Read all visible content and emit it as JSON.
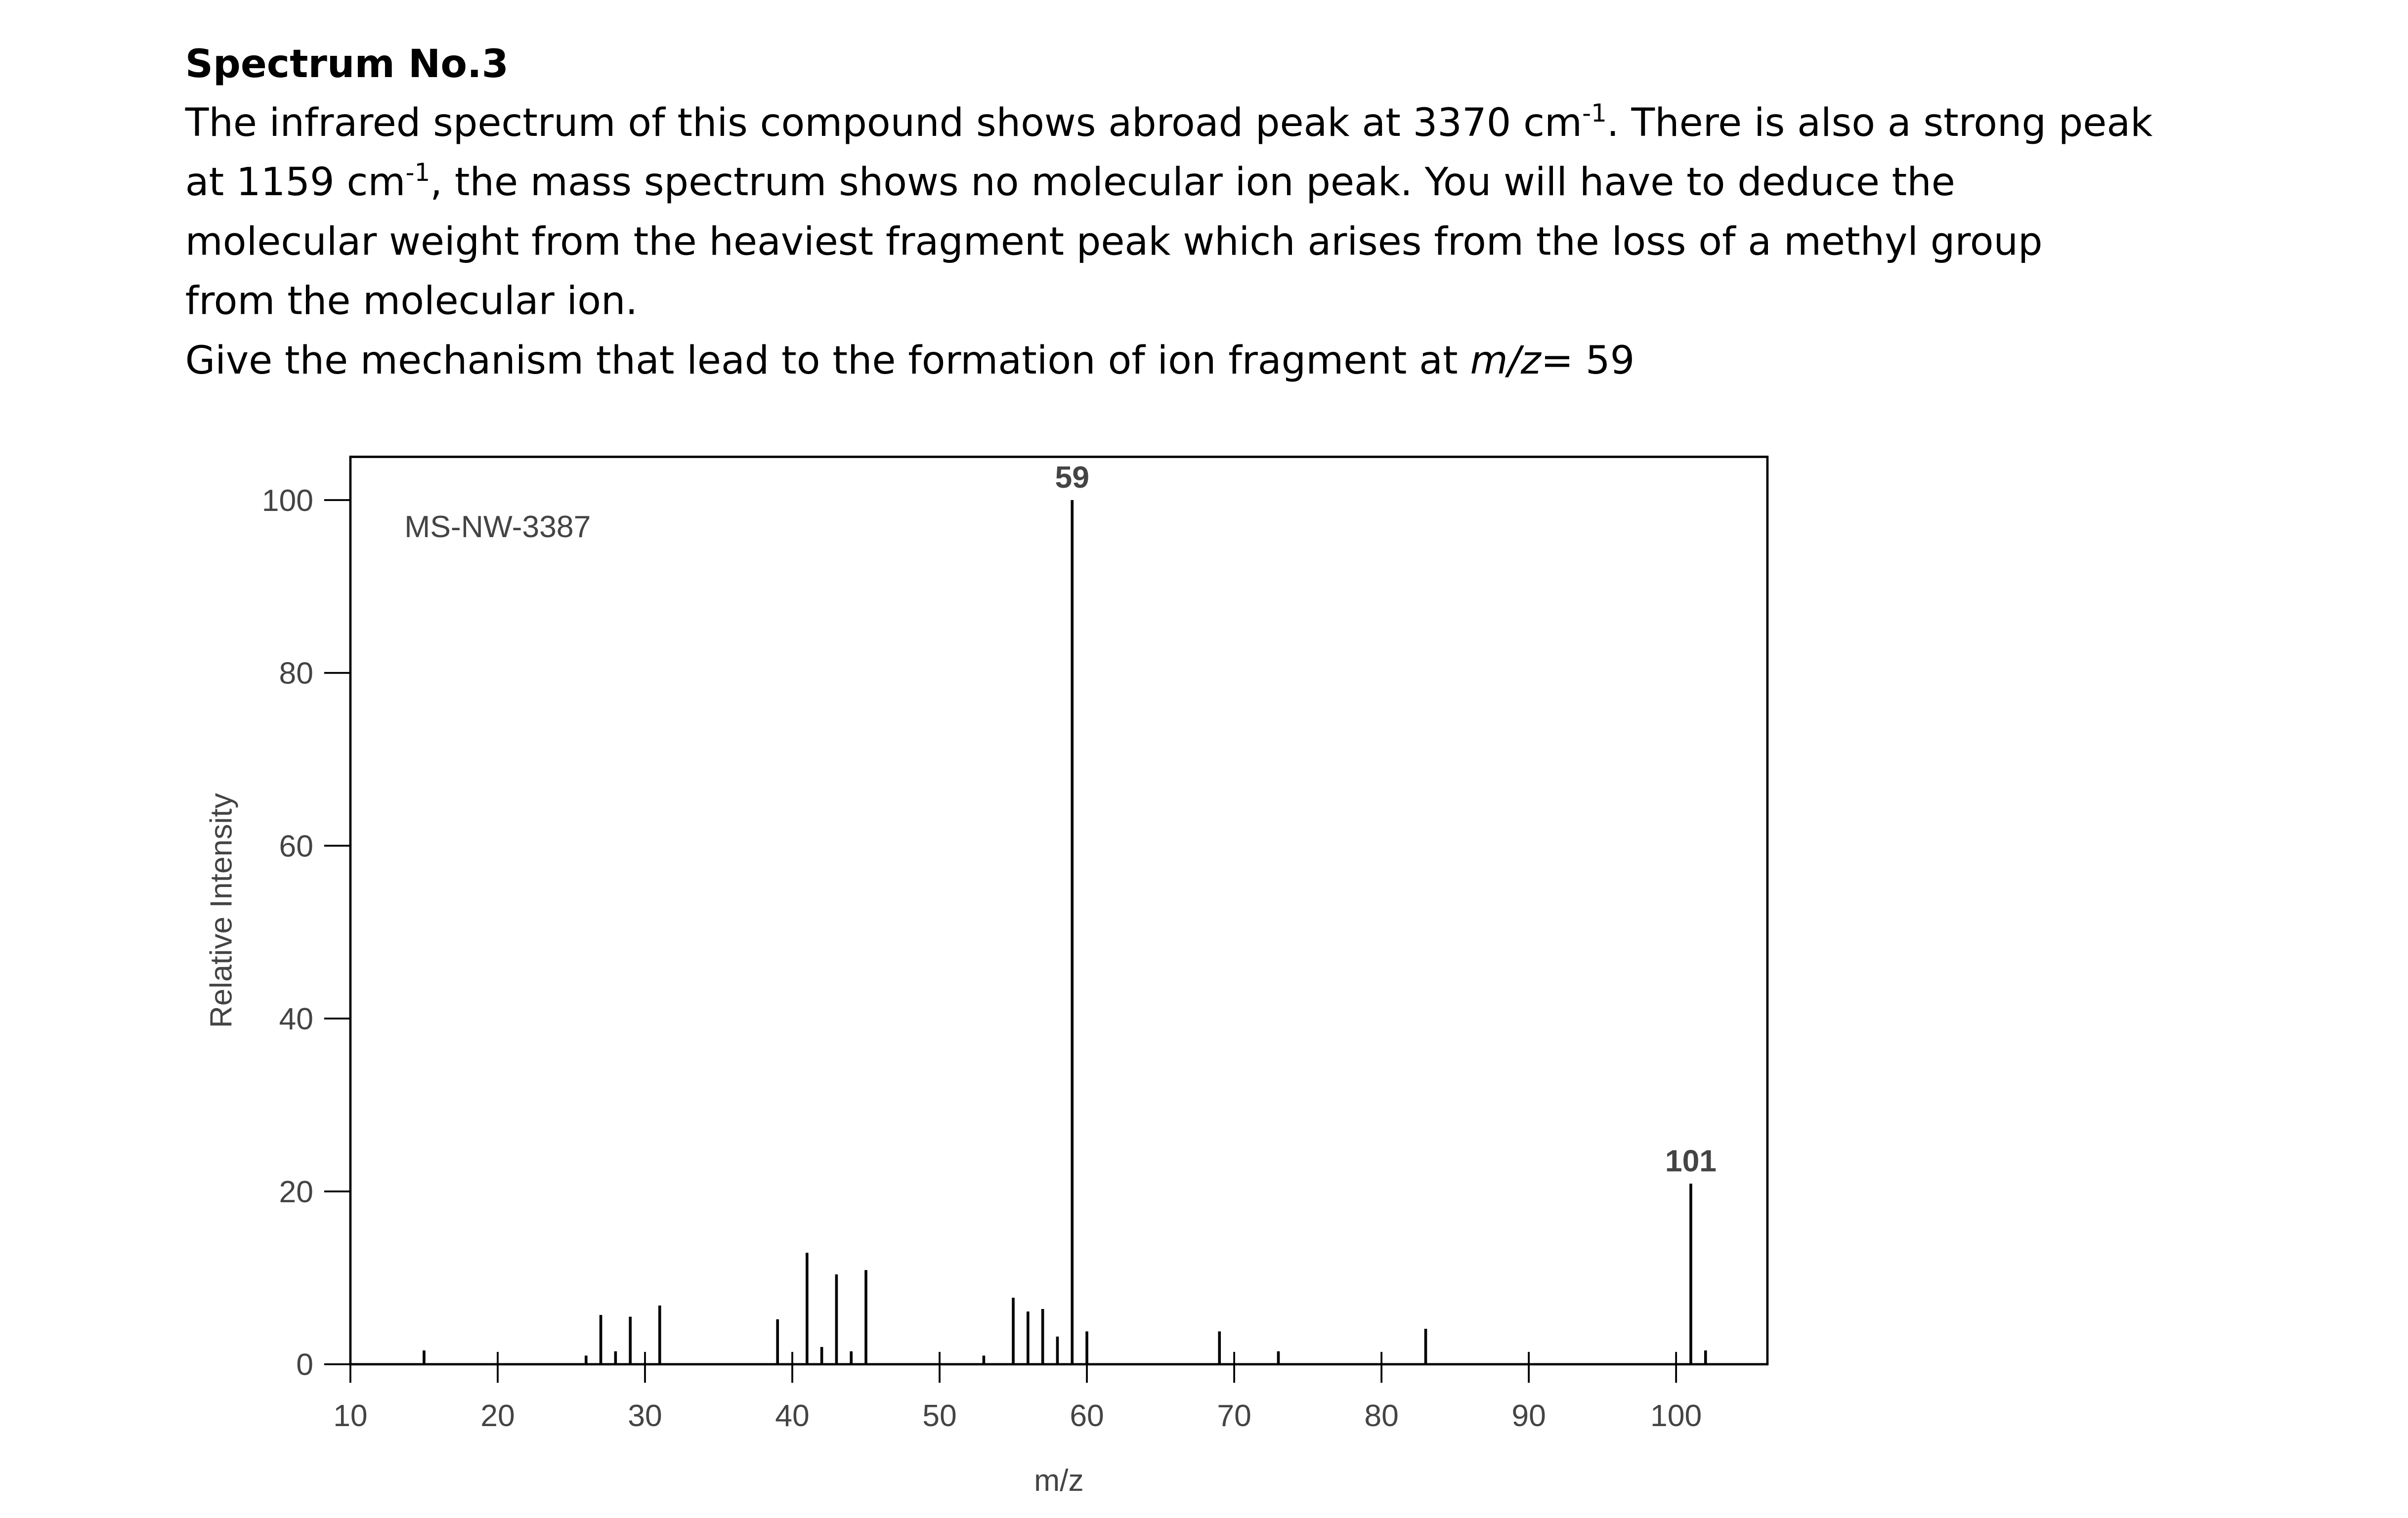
{
  "header": {
    "title": "Spectrum No.3"
  },
  "paragraph": {
    "lines": [
      [
        {
          "text": "The infrared spectrum of this compound shows abroad peak at 3370 cm",
          "style": "normal"
        },
        {
          "text": "-1",
          "style": "sup"
        },
        {
          "text": ". There is also a strong peak",
          "style": "normal"
        }
      ],
      [
        {
          "text": "at 1159 cm",
          "style": "normal"
        },
        {
          "text": "-1",
          "style": "sup"
        },
        {
          "text": ", the mass spectrum shows no molecular ion peak. You will have to deduce the",
          "style": "normal"
        }
      ],
      [
        {
          "text": "molecular weight from the heaviest fragment peak which arises from the loss of a methyl group",
          "style": "normal"
        }
      ],
      [
        {
          "text": "from the molecular ion.",
          "style": "normal"
        }
      ],
      [
        {
          "text": "Give the mechanism that lead to the formation of ion fragment at ",
          "style": "normal"
        },
        {
          "text": "m/z",
          "style": "italic"
        },
        {
          "text": "= 59",
          "style": "normal"
        }
      ]
    ]
  },
  "chart_data": {
    "type": "stem",
    "annotation": "MS-NW-3387",
    "x_label": "m/z",
    "y_label": "Relative Intensity",
    "x": [
      15,
      26,
      27,
      28,
      29,
      31,
      39,
      41,
      42,
      43,
      44,
      45,
      53,
      55,
      56,
      57,
      58,
      59,
      60,
      69,
      73,
      83,
      101,
      102
    ],
    "values": [
      1.6,
      1,
      5.7,
      1.5,
      5.5,
      6.8,
      5.2,
      12.9,
      2,
      10.4,
      1.5,
      10.9,
      1,
      7.7,
      6.1,
      6.4,
      3.2,
      100,
      3.8,
      3.8,
      1.5,
      4.1,
      20.9,
      1.6
    ],
    "peak_labels": [
      null,
      null,
      null,
      null,
      null,
      null,
      null,
      null,
      null,
      null,
      null,
      null,
      null,
      null,
      null,
      null,
      null,
      "59",
      null,
      null,
      null,
      null,
      "101",
      null
    ],
    "color": "#000000",
    "xlim": [
      10,
      106.2
    ],
    "ylim": [
      0,
      105
    ],
    "xticks": [
      10,
      20,
      30,
      40,
      50,
      60,
      70,
      80,
      90,
      100
    ],
    "yticks": [
      0,
      20,
      40,
      60,
      80,
      100
    ]
  }
}
